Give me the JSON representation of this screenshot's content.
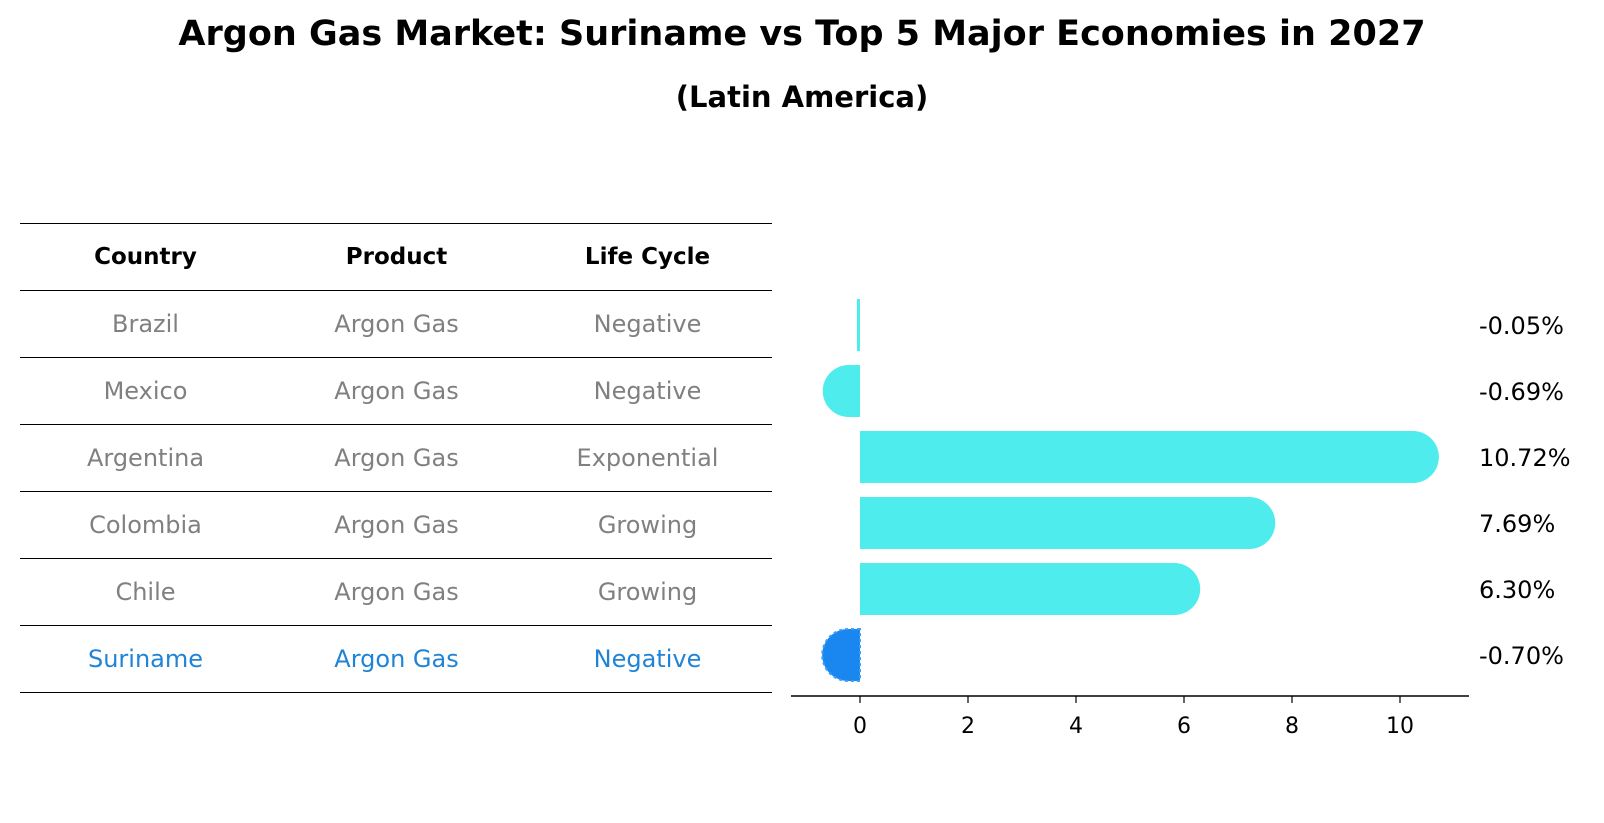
{
  "chart_data": {
    "type": "bar",
    "title": "Argon Gas Market: Suriname vs Top 5 Major Economies in 2027",
    "subtitle": "(Latin America)",
    "table": {
      "columns": [
        "Country",
        "Product",
        "Life Cycle"
      ],
      "rows": [
        {
          "country": "Brazil",
          "product": "Argon Gas",
          "life_cycle": "Negative"
        },
        {
          "country": "Mexico",
          "product": "Argon Gas",
          "life_cycle": "Negative"
        },
        {
          "country": "Argentina",
          "product": "Argon Gas",
          "life_cycle": "Exponential"
        },
        {
          "country": "Colombia",
          "product": "Argon Gas",
          "life_cycle": "Growing"
        },
        {
          "country": "Chile",
          "product": "Argon Gas",
          "life_cycle": "Growing"
        },
        {
          "country": "Suriname",
          "product": "Argon Gas",
          "life_cycle": "Negative"
        }
      ]
    },
    "categories": [
      "Brazil",
      "Mexico",
      "Argentina",
      "Colombia",
      "Chile",
      "Suriname"
    ],
    "values": [
      -0.05,
      -0.69,
      10.72,
      7.69,
      6.3,
      -0.7
    ],
    "value_labels": [
      "-0.05%",
      "-0.69%",
      "10.72%",
      "7.69%",
      "6.30%",
      "-0.70%"
    ],
    "highlight": "Suriname",
    "xlim": [
      -1.3,
      11.3
    ],
    "xticks": [
      0,
      2,
      4,
      6,
      8,
      10
    ],
    "colors": {
      "bar": "#4eecec",
      "highlight": "#1a86f0",
      "highlight_text": "#1f84d6",
      "muted_text": "#808080"
    }
  }
}
